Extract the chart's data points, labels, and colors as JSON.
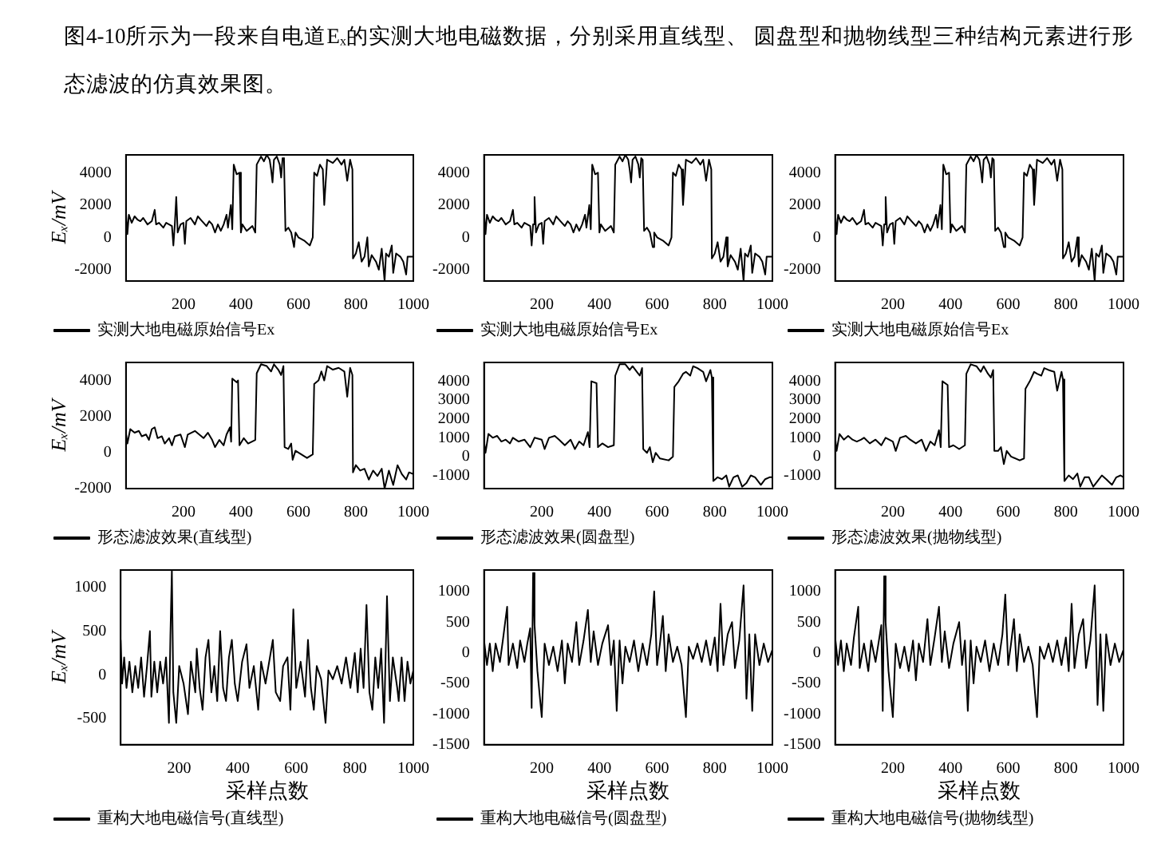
{
  "chart_data": [
    {
      "type": "line",
      "annotations": [
        "图4-10所示为一段来自电道Eₓ的实测大地电磁数据，分别采用直线型、 圆盘型和抛物线型三种结构元素进行形态滤波的仿真效果图。"
      ],
      "ylabel": "Eₓ/mV",
      "xlim": [
        0,
        1000
      ],
      "xticks": [
        200,
        400,
        600,
        800,
        1000
      ],
      "ylim": [
        -2700,
        5100
      ],
      "yticks": [
        -2000,
        0,
        2000,
        4000
      ],
      "legend": "bottom left",
      "grid": false,
      "marker": "none",
      "line_style": "solid",
      "series": [
        {
          "name": "实测大地电磁原始信号Ex",
          "color": "#000000",
          "x": [
            0,
            5,
            10,
            20,
            30,
            40,
            50,
            60,
            75,
            90,
            100,
            105,
            115,
            130,
            140,
            160,
            165,
            170,
            175,
            180,
            190,
            200,
            205,
            210,
            225,
            240,
            250,
            265,
            280,
            290,
            300,
            310,
            320,
            330,
            340,
            350,
            355,
            365,
            370,
            375,
            385,
            395,
            400,
            405,
            420,
            440,
            450,
            455,
            470,
            480,
            490,
            500,
            505,
            510,
            515,
            525,
            535,
            540,
            545,
            550,
            555,
            565,
            575,
            585,
            590,
            600,
            620,
            640,
            650,
            655,
            665,
            675,
            685,
            690,
            700,
            720,
            735,
            750,
            760,
            770,
            780,
            788,
            790,
            800,
            810,
            820,
            830,
            840,
            845,
            855,
            870,
            880,
            890,
            900,
            905,
            915,
            925,
            930,
            940,
            955,
            965,
            975,
            980,
            1000
          ],
          "values": [
            1500,
            200,
            1400,
            900,
            1300,
            1100,
            1000,
            1200,
            800,
            1000,
            1700,
            800,
            900,
            600,
            900,
            700,
            -500,
            800,
            2500,
            300,
            800,
            900,
            -400,
            1000,
            1200,
            800,
            1300,
            1000,
            700,
            1000,
            800,
            300,
            800,
            400,
            800,
            1400,
            600,
            2000,
            500,
            4500,
            3900,
            4000,
            300,
            800,
            400,
            700,
            300,
            4500,
            5000,
            4700,
            5100,
            4800,
            4200,
            3400,
            4800,
            5000,
            4500,
            3700,
            4900,
            4800,
            400,
            600,
            300,
            -600,
            300,
            0,
            -200,
            -500,
            0,
            4000,
            3800,
            4500,
            4200,
            2000,
            4800,
            4600,
            4900,
            4500,
            4800,
            3500,
            4800,
            4200,
            -1300,
            -1000,
            -300,
            -1500,
            -1200,
            0,
            -1800,
            -1100,
            -1500,
            -2000,
            -700,
            -2700,
            -1000,
            -1200,
            -500,
            -2200,
            -1000,
            -1200,
            -1500,
            -2300,
            -1200,
            -1200
          ]
        }
      ]
    },
    {
      "type": "line",
      "xlim": [
        0,
        1000
      ],
      "xticks": [
        200,
        400,
        600,
        800,
        1000
      ],
      "ylim": [
        -2700,
        5100
      ],
      "yticks": [
        -2000,
        0,
        2000,
        4000
      ],
      "legend": "bottom left",
      "grid": false,
      "marker": "none",
      "line_style": "solid",
      "series": [
        {
          "name": "实测大地电磁原始信号Ex",
          "color": "#000000",
          "x": [
            0,
            5,
            10,
            20,
            30,
            40,
            50,
            60,
            75,
            90,
            100,
            105,
            115,
            130,
            140,
            160,
            165,
            170,
            175,
            180,
            190,
            200,
            205,
            210,
            225,
            240,
            250,
            265,
            280,
            290,
            300,
            310,
            320,
            330,
            340,
            350,
            355,
            365,
            370,
            375,
            385,
            395,
            400,
            405,
            420,
            440,
            450,
            455,
            470,
            480,
            490,
            500,
            505,
            510,
            515,
            525,
            535,
            540,
            545,
            550,
            555,
            565,
            575,
            585,
            590,
            600,
            620,
            640,
            650,
            655,
            665,
            675,
            685,
            690,
            700,
            720,
            735,
            750,
            760,
            770,
            780,
            788,
            790,
            800,
            810,
            820,
            830,
            840,
            845,
            855,
            870,
            880,
            890,
            900,
            905,
            915,
            925,
            930,
            940,
            955,
            965,
            975,
            980,
            1000
          ],
          "values": [
            1500,
            200,
            1400,
            900,
            1300,
            1100,
            1000,
            1200,
            800,
            1000,
            1700,
            800,
            900,
            600,
            900,
            700,
            -500,
            800,
            2500,
            300,
            800,
            900,
            -400,
            1000,
            1200,
            800,
            1300,
            1000,
            700,
            1000,
            800,
            300,
            800,
            400,
            800,
            1400,
            600,
            2000,
            500,
            4500,
            3900,
            4000,
            300,
            800,
            400,
            700,
            300,
            4500,
            5000,
            4700,
            5100,
            4800,
            4200,
            3400,
            4800,
            5000,
            4500,
            3700,
            4900,
            4800,
            400,
            600,
            300,
            -600,
            300,
            0,
            -200,
            -500,
            0,
            4000,
            3800,
            4500,
            4200,
            2000,
            4800,
            4600,
            4900,
            4500,
            4800,
            3500,
            4800,
            4200,
            -1300,
            -1000,
            -300,
            -1500,
            -1200,
            0,
            -1800,
            -1100,
            -1500,
            -2000,
            -700,
            -2700,
            -1000,
            -1200,
            -500,
            -2200,
            -1000,
            -1200,
            -1500,
            -2300,
            -1200,
            -1200
          ]
        }
      ]
    },
    {
      "type": "line",
      "xlim": [
        0,
        1000
      ],
      "xticks": [
        200,
        400,
        600,
        800,
        1000
      ],
      "ylim": [
        -2700,
        5100
      ],
      "yticks": [
        -2000,
        0,
        2000,
        4000
      ],
      "legend": "bottom left",
      "grid": false,
      "marker": "none",
      "line_style": "solid",
      "series": [
        {
          "name": "实测大地电磁原始信号Ex",
          "color": "#000000",
          "x": [
            0,
            5,
            10,
            20,
            30,
            40,
            50,
            60,
            75,
            90,
            100,
            105,
            115,
            130,
            140,
            160,
            165,
            170,
            175,
            180,
            190,
            200,
            205,
            210,
            225,
            240,
            250,
            265,
            280,
            290,
            300,
            310,
            320,
            330,
            340,
            350,
            355,
            365,
            370,
            375,
            385,
            395,
            400,
            405,
            420,
            440,
            450,
            455,
            470,
            480,
            490,
            500,
            505,
            510,
            515,
            525,
            535,
            540,
            545,
            550,
            555,
            565,
            575,
            585,
            590,
            600,
            620,
            640,
            650,
            655,
            665,
            675,
            685,
            690,
            700,
            720,
            735,
            750,
            760,
            770,
            780,
            788,
            790,
            800,
            810,
            820,
            830,
            840,
            845,
            855,
            870,
            880,
            890,
            900,
            905,
            915,
            925,
            930,
            940,
            955,
            965,
            975,
            980,
            1000
          ],
          "values": [
            1500,
            200,
            1400,
            900,
            1300,
            1100,
            1000,
            1200,
            800,
            1000,
            1700,
            800,
            900,
            600,
            900,
            700,
            -500,
            800,
            2500,
            300,
            800,
            900,
            -400,
            1000,
            1200,
            800,
            1300,
            1000,
            700,
            1000,
            800,
            300,
            800,
            400,
            800,
            1400,
            600,
            2000,
            500,
            4500,
            3900,
            4000,
            300,
            800,
            400,
            700,
            300,
            4500,
            5000,
            4700,
            5100,
            4800,
            4200,
            3400,
            4800,
            5000,
            4500,
            3700,
            4900,
            4800,
            400,
            600,
            300,
            -600,
            300,
            0,
            -200,
            -500,
            0,
            4000,
            3800,
            4500,
            4200,
            2000,
            4800,
            4600,
            4900,
            4500,
            4800,
            3500,
            4800,
            4200,
            -1300,
            -1000,
            -300,
            -1500,
            -1200,
            0,
            -1800,
            -1100,
            -1500,
            -2000,
            -700,
            -2700,
            -1000,
            -1200,
            -500,
            -2200,
            -1000,
            -1200,
            -1500,
            -2300,
            -1200,
            -1200
          ]
        }
      ]
    },
    {
      "type": "line",
      "ylabel": "Eₓ/mV",
      "xlim": [
        0,
        1000
      ],
      "xticks": [
        200,
        400,
        600,
        800,
        1000
      ],
      "ylim": [
        -2000,
        5000
      ],
      "yticks": [
        -2000,
        0,
        2000,
        4000
      ],
      "legend": "bottom left",
      "grid": false,
      "marker": "none",
      "line_style": "solid",
      "series": [
        {
          "name": "形态滤波效果(直线型)",
          "color": "#000000",
          "x": [
            0,
            5,
            15,
            30,
            45,
            55,
            70,
            80,
            90,
            100,
            110,
            125,
            135,
            150,
            160,
            170,
            190,
            205,
            215,
            240,
            255,
            270,
            285,
            300,
            310,
            325,
            340,
            350,
            362,
            366,
            370,
            385,
            390,
            395,
            410,
            425,
            450,
            455,
            470,
            490,
            505,
            515,
            530,
            540,
            548,
            552,
            565,
            575,
            580,
            590,
            600,
            630,
            650,
            655,
            670,
            680,
            690,
            700,
            720,
            740,
            760,
            770,
            780,
            788,
            790,
            800,
            815,
            830,
            845,
            860,
            875,
            890,
            900,
            915,
            930,
            945,
            960,
            975,
            985,
            1000
          ],
          "values": [
            1100,
            500,
            1300,
            1100,
            1200,
            900,
            1000,
            700,
            1300,
            1400,
            800,
            900,
            500,
            800,
            400,
            900,
            1000,
            300,
            1000,
            1200,
            1000,
            800,
            1100,
            700,
            300,
            700,
            400,
            1000,
            1400,
            600,
            4100,
            3900,
            4000,
            400,
            800,
            500,
            700,
            4400,
            4900,
            4800,
            4500,
            4900,
            4600,
            4300,
            4800,
            300,
            200,
            500,
            -400,
            100,
            0,
            -300,
            -100,
            3800,
            4000,
            4500,
            4000,
            4800,
            4600,
            4700,
            4500,
            3100,
            4700,
            4300,
            -1100,
            -700,
            -1000,
            -900,
            -1500,
            -1000,
            -1300,
            -900,
            -2000,
            -1000,
            -1800,
            -700,
            -1200,
            -1500,
            -1100,
            -1200
          ]
        }
      ]
    },
    {
      "type": "line",
      "xlim": [
        0,
        1000
      ],
      "xticks": [
        200,
        400,
        600,
        800,
        1000
      ],
      "ylim": [
        -1700,
        5000
      ],
      "yticks": [
        -1000,
        0,
        1000,
        2000,
        3000,
        4000
      ],
      "legend": "bottom left",
      "grid": false,
      "marker": "none",
      "line_style": "solid",
      "series": [
        {
          "name": "形态滤波效果(圆盘型)",
          "color": "#000000",
          "x": [
            0,
            5,
            15,
            30,
            45,
            60,
            75,
            90,
            100,
            120,
            140,
            160,
            175,
            200,
            210,
            225,
            245,
            260,
            280,
            300,
            315,
            330,
            345,
            360,
            366,
            372,
            390,
            395,
            410,
            430,
            450,
            455,
            470,
            490,
            505,
            515,
            530,
            540,
            548,
            552,
            565,
            575,
            585,
            595,
            610,
            640,
            655,
            660,
            675,
            690,
            700,
            715,
            725,
            740,
            760,
            770,
            785,
            790,
            795,
            810,
            825,
            840,
            850,
            865,
            880,
            895,
            910,
            925,
            940,
            960,
            975,
            990,
            1000
          ],
          "values": [
            800,
            200,
            1200,
            1000,
            1100,
            800,
            900,
            700,
            1000,
            800,
            900,
            500,
            1000,
            900,
            400,
            1000,
            1100,
            900,
            600,
            900,
            400,
            800,
            600,
            1300,
            500,
            4000,
            3900,
            500,
            700,
            500,
            600,
            4300,
            4900,
            4900,
            4600,
            4800,
            4500,
            4300,
            4700,
            400,
            200,
            500,
            -300,
            200,
            -100,
            -200,
            0,
            3700,
            4000,
            4400,
            4500,
            4300,
            4800,
            4700,
            4500,
            4000,
            4600,
            4200,
            -1300,
            -1100,
            -1200,
            -1000,
            -1600,
            -1100,
            -1000,
            -1600,
            -1400,
            -1000,
            -1100,
            -1500,
            -1200,
            -1100,
            -1100
          ]
        }
      ]
    },
    {
      "type": "line",
      "xlim": [
        0,
        1000
      ],
      "xticks": [
        200,
        400,
        600,
        800,
        1000
      ],
      "ylim": [
        -1700,
        5000
      ],
      "yticks": [
        -1000,
        0,
        1000,
        2000,
        3000,
        4000
      ],
      "legend": "bottom left",
      "grid": false,
      "marker": "none",
      "line_style": "solid",
      "series": [
        {
          "name": "形态滤波效果(抛物线型)",
          "color": "#000000",
          "x": [
            0,
            5,
            15,
            30,
            45,
            60,
            75,
            90,
            100,
            120,
            140,
            160,
            175,
            200,
            210,
            225,
            245,
            260,
            280,
            300,
            315,
            330,
            345,
            360,
            366,
            372,
            390,
            395,
            410,
            430,
            450,
            455,
            470,
            490,
            505,
            515,
            530,
            540,
            548,
            552,
            565,
            575,
            585,
            595,
            610,
            640,
            655,
            660,
            675,
            690,
            700,
            715,
            725,
            740,
            760,
            770,
            785,
            790,
            795,
            810,
            825,
            840,
            850,
            865,
            880,
            895,
            910,
            925,
            940,
            960,
            975,
            990,
            1000
          ],
          "values": [
            1000,
            300,
            1200,
            900,
            1100,
            900,
            800,
            900,
            1000,
            700,
            900,
            600,
            1000,
            800,
            300,
            1000,
            1100,
            900,
            700,
            900,
            300,
            800,
            600,
            1400,
            500,
            4000,
            3800,
            500,
            600,
            400,
            600,
            4400,
            4900,
            4800,
            4500,
            4800,
            4400,
            4200,
            4600,
            300,
            300,
            500,
            -400,
            300,
            0,
            -200,
            -100,
            3600,
            4000,
            4500,
            4400,
            4300,
            4700,
            4600,
            4500,
            3500,
            4500,
            4100,
            -1300,
            -1000,
            -1200,
            -900,
            -1600,
            -1100,
            -1100,
            -1600,
            -1300,
            -1000,
            -1200,
            -1500,
            -1100,
            -1000,
            -1100
          ]
        }
      ]
    },
    {
      "type": "line",
      "ylabel": "Eₓ/mV",
      "xlabel": "采样点数",
      "xlim": [
        0,
        1000
      ],
      "xticks": [
        200,
        400,
        600,
        800,
        1000
      ],
      "ylim": [
        -800,
        1200
      ],
      "yticks": [
        -500,
        0,
        500,
        1000
      ],
      "legend": "bottom left",
      "grid": false,
      "marker": "none",
      "line_style": "solid",
      "series": [
        {
          "name": "重构大地电磁信号(直线型)",
          "color": "#000000",
          "x": [
            0,
            5,
            12,
            20,
            30,
            40,
            50,
            60,
            70,
            80,
            90,
            100,
            105,
            115,
            125,
            135,
            145,
            155,
            165,
            170,
            175,
            180,
            190,
            200,
            215,
            230,
            240,
            255,
            260,
            270,
            280,
            290,
            300,
            310,
            320,
            330,
            340,
            350,
            360,
            370,
            380,
            390,
            400,
            415,
            430,
            440,
            455,
            470,
            480,
            495,
            510,
            520,
            530,
            545,
            555,
            570,
            580,
            590,
            600,
            615,
            630,
            640,
            650,
            660,
            670,
            685,
            700,
            710,
            725,
            740,
            755,
            770,
            785,
            800,
            810,
            820,
            830,
            840,
            850,
            860,
            870,
            880,
            890,
            900,
            910,
            920,
            930,
            945,
            950,
            960,
            970,
            980,
            990,
            1000
          ],
          "values": [
            400,
            -100,
            200,
            -150,
            150,
            -200,
            100,
            -150,
            200,
            -250,
            100,
            500,
            -250,
            150,
            -200,
            150,
            -100,
            200,
            -550,
            450,
            1200,
            -200,
            -550,
            100,
            -100,
            -450,
            150,
            -200,
            300,
            -150,
            -400,
            200,
            400,
            -200,
            100,
            -300,
            500,
            -150,
            -300,
            200,
            400,
            -100,
            -300,
            150,
            350,
            -150,
            100,
            -400,
            150,
            -100,
            200,
            400,
            -200,
            -300,
            100,
            200,
            -400,
            750,
            -150,
            150,
            -250,
            400,
            -150,
            -400,
            100,
            -50,
            -550,
            50,
            -50,
            100,
            -100,
            200,
            -150,
            250,
            -200,
            300,
            -150,
            800,
            -200,
            -400,
            200,
            -150,
            300,
            -550,
            900,
            -300,
            200,
            -150,
            -300,
            200,
            -300,
            150,
            -100,
            50
          ]
        }
      ]
    },
    {
      "type": "line",
      "xlabel": "采样点数",
      "xlim": [
        0,
        1000
      ],
      "xticks": [
        200,
        400,
        600,
        800,
        1000
      ],
      "ylim": [
        -1500,
        1350
      ],
      "yticks": [
        -1500,
        -1000,
        -500,
        0,
        500,
        1000
      ],
      "legend": "bottom left",
      "grid": false,
      "marker": "none",
      "line_style": "solid",
      "series": [
        {
          "name": "重构大地电磁信号(圆盘型)",
          "color": "#000000",
          "x": [
            0,
            10,
            20,
            30,
            40,
            55,
            65,
            80,
            85,
            100,
            115,
            125,
            140,
            150,
            160,
            165,
            170,
            175,
            185,
            200,
            210,
            225,
            240,
            255,
            270,
            280,
            290,
            305,
            320,
            330,
            345,
            360,
            370,
            380,
            395,
            410,
            430,
            440,
            450,
            460,
            470,
            480,
            490,
            505,
            520,
            535,
            550,
            565,
            580,
            590,
            600,
            610,
            620,
            630,
            640,
            655,
            670,
            685,
            700,
            710,
            725,
            740,
            755,
            770,
            785,
            800,
            810,
            820,
            830,
            845,
            860,
            870,
            885,
            900,
            910,
            920,
            930,
            940,
            955,
            970,
            985,
            1000
          ],
          "values": [
            200,
            -200,
            150,
            -300,
            150,
            -150,
            200,
            750,
            -200,
            150,
            -250,
            200,
            -150,
            150,
            400,
            -900,
            1300,
            450,
            -300,
            -1050,
            150,
            -200,
            100,
            -300,
            200,
            -500,
            150,
            -150,
            500,
            -200,
            200,
            700,
            -150,
            350,
            -200,
            150,
            450,
            -200,
            200,
            -950,
            200,
            -500,
            100,
            -150,
            200,
            -300,
            150,
            -200,
            300,
            1000,
            -200,
            150,
            600,
            -300,
            300,
            -150,
            100,
            -200,
            -1050,
            100,
            -100,
            150,
            -150,
            200,
            -200,
            250,
            -300,
            800,
            -200,
            300,
            500,
            -250,
            200,
            1100,
            -750,
            300,
            -950,
            300,
            -200,
            150,
            -150,
            50
          ]
        }
      ]
    },
    {
      "type": "line",
      "xlabel": "采样点数",
      "xlim": [
        0,
        1000
      ],
      "xticks": [
        200,
        400,
        600,
        800,
        1000
      ],
      "ylim": [
        -1500,
        1350
      ],
      "yticks": [
        -1500,
        -1000,
        -500,
        0,
        500,
        1000
      ],
      "legend": "bottom left",
      "grid": false,
      "marker": "none",
      "line_style": "solid",
      "series": [
        {
          "name": "重构大地电磁信号(抛物线型)",
          "color": "#000000",
          "x": [
            0,
            10,
            20,
            30,
            40,
            55,
            65,
            80,
            85,
            100,
            115,
            125,
            140,
            150,
            160,
            165,
            170,
            175,
            185,
            200,
            210,
            225,
            240,
            255,
            270,
            280,
            290,
            305,
            320,
            330,
            345,
            360,
            370,
            380,
            395,
            410,
            430,
            440,
            450,
            460,
            470,
            480,
            490,
            505,
            520,
            535,
            550,
            565,
            580,
            590,
            600,
            610,
            620,
            630,
            640,
            655,
            670,
            685,
            700,
            710,
            725,
            740,
            755,
            770,
            785,
            800,
            810,
            820,
            830,
            845,
            860,
            870,
            885,
            900,
            910,
            920,
            930,
            940,
            955,
            970,
            985,
            1000
          ],
          "values": [
            250,
            -200,
            200,
            -300,
            150,
            -200,
            250,
            750,
            -250,
            150,
            -300,
            200,
            -150,
            150,
            450,
            -950,
            1250,
            500,
            -300,
            -1050,
            150,
            -250,
            100,
            -300,
            200,
            -450,
            150,
            -150,
            550,
            -200,
            250,
            750,
            -150,
            350,
            -250,
            150,
            500,
            -200,
            200,
            -950,
            200,
            -500,
            100,
            -150,
            200,
            -300,
            150,
            -200,
            300,
            950,
            -200,
            150,
            550,
            -300,
            300,
            -150,
            100,
            -200,
            -1050,
            100,
            -100,
            150,
            -150,
            200,
            -200,
            250,
            -300,
            800,
            -250,
            300,
            550,
            -250,
            200,
            1100,
            -850,
            300,
            -950,
            300,
            -200,
            150,
            -150,
            50
          ]
        }
      ]
    }
  ]
}
